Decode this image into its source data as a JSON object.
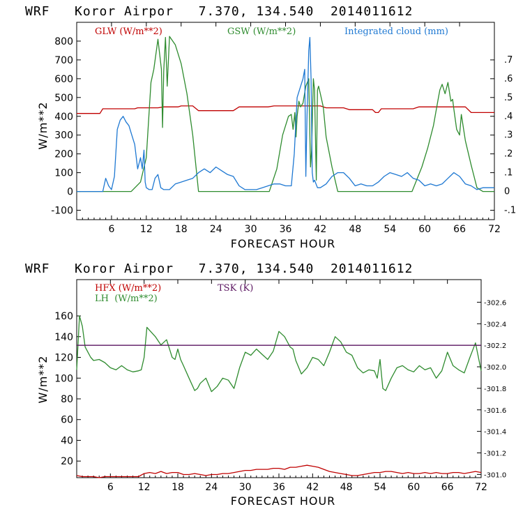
{
  "colors": {
    "glw": "#c00000",
    "gsw": "#2e8b2e",
    "cloud": "#1e78d2",
    "hfx": "#c00000",
    "lh": "#2e8b2e",
    "tsk": "#5a1560"
  },
  "chart_data": [
    {
      "type": "line",
      "title": "WRF   Koror Airpor   7.370, 134.540  2014011612",
      "xlabel": "FORECAST HOUR",
      "ylabel": "W/m**2",
      "xlim": [
        0,
        72
      ],
      "ylim": [
        -150,
        900
      ],
      "x_ticks": [
        6,
        12,
        18,
        24,
        30,
        36,
        42,
        48,
        54,
        60,
        66,
        72
      ],
      "y_ticks": [
        -100,
        0,
        100,
        200,
        300,
        400,
        500,
        600,
        700,
        800
      ],
      "right_ylim": [
        -0.15,
        0.9
      ],
      "right_ticks": [
        "-.1",
        "0",
        ".1",
        ".2",
        ".3",
        ".4",
        ".5",
        ".6",
        ".7"
      ],
      "grid": false,
      "legend_position": "top",
      "series": [
        {
          "name": "GLW (W/m**2)",
          "axis": "left",
          "x": [
            0,
            4,
            4.5,
            10,
            10.5,
            14,
            15,
            17.5,
            18,
            20,
            21,
            27,
            28,
            33,
            34,
            42,
            43,
            46,
            47,
            51,
            51.5,
            52,
            52.5,
            58,
            59,
            67,
            68,
            72
          ],
          "y": [
            415,
            415,
            440,
            440,
            445,
            445,
            450,
            450,
            455,
            455,
            430,
            430,
            450,
            450,
            455,
            455,
            445,
            445,
            435,
            435,
            420,
            420,
            440,
            440,
            450,
            450,
            420,
            420
          ]
        },
        {
          "name": "GSW (W/m**2)",
          "axis": "left",
          "x": [
            0,
            9.4,
            11,
            12,
            12.8,
            13.3,
            14,
            14.6,
            14.8,
            15,
            15.3,
            15.6,
            16,
            17,
            18,
            19,
            20,
            21,
            33.2,
            34.5,
            35.5,
            36.5,
            37,
            37.3,
            37.6,
            37.8,
            38,
            38.3,
            38.6,
            39,
            39.5,
            40,
            40.3,
            40.5,
            40.8,
            41,
            41.3,
            41.5,
            41.7,
            42,
            42.5,
            43,
            44,
            45,
            57.8,
            59.5,
            60.5,
            61.5,
            62.3,
            62.6,
            63,
            63.5,
            64,
            64.5,
            64.8,
            65,
            65.5,
            66,
            66.3,
            67,
            68,
            69,
            70,
            72
          ],
          "y": [
            0,
            0,
            50,
            180,
            580,
            650,
            810,
            650,
            340,
            640,
            820,
            560,
            825,
            780,
            680,
            520,
            300,
            0,
            0,
            120,
            300,
            400,
            410,
            330,
            420,
            290,
            400,
            480,
            450,
            470,
            560,
            600,
            130,
            220,
            600,
            540,
            60,
            540,
            560,
            520,
            450,
            290,
            130,
            0,
            0,
            130,
            230,
            350,
            490,
            540,
            570,
            520,
            580,
            480,
            490,
            440,
            330,
            300,
            410,
            270,
            140,
            20,
            0,
            0
          ]
        },
        {
          "name": "Integrated cloud (mm)",
          "axis": "right",
          "x": [
            0,
            4.5,
            5,
            5.5,
            6,
            6.5,
            7,
            7.5,
            8,
            8.5,
            9,
            9.5,
            10,
            10.5,
            11,
            11.3,
            11.6,
            11.8,
            12,
            12.5,
            13,
            13.5,
            14,
            14.5,
            15,
            16,
            17,
            18,
            19,
            20,
            21,
            22,
            23,
            24,
            25,
            26,
            27,
            28,
            29,
            30,
            31,
            32,
            33,
            34,
            35,
            36,
            37,
            37.5,
            38,
            38.5,
            39,
            39.3,
            39.5,
            39.7,
            40,
            40.2,
            40.4,
            40.6,
            40.8,
            41,
            41.5,
            42,
            43,
            44,
            45,
            46,
            47,
            48,
            49,
            50,
            51,
            52,
            53,
            54,
            55,
            56,
            57,
            58,
            59,
            60,
            61,
            62,
            63,
            64,
            65,
            66,
            67,
            68,
            69,
            70,
            71,
            72
          ],
          "y": [
            0,
            0,
            0.07,
            0.03,
            0.01,
            0.08,
            0.33,
            0.38,
            0.4,
            0.37,
            0.35,
            0.3,
            0.25,
            0.12,
            0.18,
            0.12,
            0.22,
            0.05,
            0.02,
            0.01,
            0.01,
            0.07,
            0.09,
            0.02,
            0.01,
            0.01,
            0.04,
            0.05,
            0.06,
            0.07,
            0.1,
            0.12,
            0.1,
            0.13,
            0.11,
            0.09,
            0.08,
            0.03,
            0.01,
            0.01,
            0.01,
            0.02,
            0.03,
            0.04,
            0.04,
            0.03,
            0.03,
            0.2,
            0.5,
            0.55,
            0.6,
            0.65,
            0.08,
            0.4,
            0.75,
            0.82,
            0.6,
            0.1,
            0.05,
            0.06,
            0.02,
            0.02,
            0.04,
            0.08,
            0.1,
            0.1,
            0.07,
            0.03,
            0.04,
            0.03,
            0.03,
            0.05,
            0.08,
            0.1,
            0.09,
            0.08,
            0.1,
            0.07,
            0.06,
            0.03,
            0.04,
            0.03,
            0.04,
            0.07,
            0.1,
            0.08,
            0.04,
            0.03,
            0.01,
            0.02,
            0.02,
            0.02
          ]
        }
      ]
    },
    {
      "type": "line",
      "title": "WRF   Koror Airpor   7.370, 134.540  2014011612",
      "xlabel": "FORECAST HOUR",
      "ylabel": "W/m**2",
      "xlim": [
        0,
        72
      ],
      "ylim": [
        4,
        195
      ],
      "x_ticks": [
        6,
        12,
        18,
        24,
        30,
        36,
        42,
        48,
        54,
        60,
        66,
        72
      ],
      "y_ticks": [
        20,
        40,
        60,
        80,
        100,
        120,
        140,
        160
      ],
      "right_ylim": [
        300.97,
        302.81
      ],
      "right_ticks": [
        "301.0",
        "301.2",
        "301.4",
        "301.6",
        "301.8",
        "302.0",
        "302.2",
        "302.4",
        "302.6"
      ],
      "grid": false,
      "legend_position": "top-left",
      "series": [
        {
          "name": "HFX (W/m**2)",
          "axis": "left",
          "x": [
            0,
            1,
            2,
            3,
            4,
            5,
            6,
            7,
            8,
            9,
            10,
            11,
            12,
            13,
            14,
            15,
            16,
            17,
            18,
            19,
            20,
            21,
            22,
            23,
            24,
            25,
            26,
            27,
            28,
            29,
            30,
            31,
            32,
            33,
            34,
            35,
            36,
            37,
            38,
            39,
            40,
            41,
            42,
            43,
            44,
            45,
            46,
            47,
            48,
            49,
            50,
            51,
            52,
            53,
            54,
            55,
            56,
            57,
            58,
            59,
            60,
            61,
            62,
            63,
            64,
            65,
            66,
            67,
            68,
            69,
            70,
            71,
            72
          ],
          "y": [
            6,
            5,
            5,
            5,
            4,
            5,
            5,
            5,
            5,
            5,
            5,
            5,
            8,
            9,
            8,
            10,
            8,
            9,
            9,
            7,
            7,
            8,
            7,
            6,
            7,
            7,
            8,
            8,
            9,
            10,
            11,
            11,
            12,
            12,
            12,
            13,
            13,
            12,
            14,
            14,
            15,
            16,
            15,
            14,
            12,
            10,
            9,
            8,
            7,
            6,
            6,
            7,
            8,
            9,
            9,
            10,
            10,
            9,
            8,
            9,
            8,
            8,
            9,
            8,
            9,
            8,
            8,
            9,
            9,
            8,
            9,
            10,
            9
          ]
        },
        {
          "name": "LH  (W/m**2)",
          "axis": "left",
          "x": [
            0,
            0.5,
            1,
            1.5,
            2,
            2.5,
            3,
            4,
            5,
            6,
            7,
            8,
            9,
            10,
            11,
            11.5,
            12,
            12.5,
            13,
            14,
            15,
            16,
            17,
            17.5,
            18,
            18.5,
            19,
            20,
            21,
            21.5,
            22,
            23,
            24,
            25,
            26,
            27,
            28,
            29,
            30,
            31,
            32,
            33,
            34,
            35,
            36,
            37,
            38,
            38.5,
            39,
            40,
            41,
            42,
            43,
            44,
            45,
            46,
            47,
            48,
            49,
            50,
            51,
            52,
            53,
            53.5,
            54,
            54.5,
            55,
            56,
            57,
            58,
            59,
            60,
            61,
            62,
            63,
            64,
            65,
            66,
            67,
            68,
            69,
            70,
            71,
            72
          ],
          "y": [
            108,
            160,
            150,
            130,
            125,
            120,
            117,
            118,
            115,
            110,
            108,
            112,
            108,
            106,
            107,
            108,
            120,
            149,
            146,
            140,
            132,
            137,
            120,
            118,
            128,
            118,
            112,
            100,
            88,
            90,
            95,
            100,
            87,
            92,
            100,
            98,
            90,
            110,
            125,
            122,
            128,
            123,
            118,
            126,
            145,
            140,
            130,
            128,
            117,
            104,
            110,
            120,
            118,
            112,
            125,
            140,
            135,
            125,
            122,
            110,
            105,
            108,
            107,
            100,
            118,
            90,
            88,
            100,
            110,
            112,
            108,
            106,
            112,
            108,
            110,
            100,
            107,
            125,
            112,
            108,
            105,
            120,
            134,
            107
          ]
        },
        {
          "name": "TSK (K)",
          "axis": "right",
          "x": [
            0,
            72
          ],
          "y": [
            302.2,
            302.2
          ]
        }
      ]
    }
  ]
}
